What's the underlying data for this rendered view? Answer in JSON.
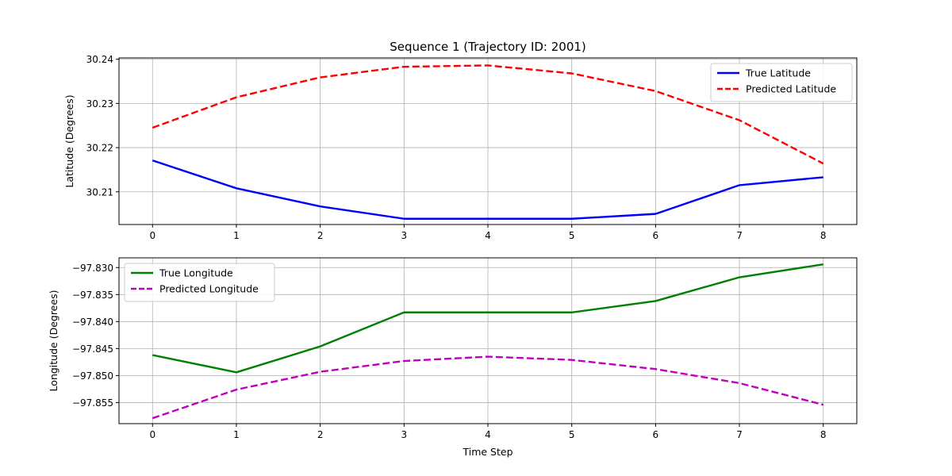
{
  "figure": {
    "title": "Sequence 1 (Trajectory ID: 2001)"
  },
  "chart_data": [
    {
      "type": "line",
      "title": "Sequence 1 (Trajectory ID: 2001)",
      "xlabel": "",
      "ylabel": "Latitude (Degrees)",
      "x": [
        0,
        1,
        2,
        3,
        4,
        5,
        6,
        7,
        8
      ],
      "xticks": [
        "0",
        "1",
        "2",
        "3",
        "4",
        "5",
        "6",
        "7",
        "8"
      ],
      "xlim": [
        -0.4,
        8.4
      ],
      "ylim": [
        30.2026,
        30.2403
      ],
      "yticks": [
        30.21,
        30.22,
        30.23,
        30.24
      ],
      "ytick_labels": [
        "30.21",
        "30.22",
        "30.23",
        "30.24"
      ],
      "grid": true,
      "legend_position": "upper right",
      "series": [
        {
          "name": "True Latitude",
          "color": "#0000ff",
          "style": "solid",
          "values": [
            30.2171,
            30.2108,
            30.2067,
            30.2039,
            30.2039,
            30.2039,
            30.205,
            30.2115,
            30.2133
          ]
        },
        {
          "name": "Predicted Latitude",
          "color": "#ff0000",
          "style": "dashed",
          "values": [
            30.2245,
            30.2314,
            30.2359,
            30.2383,
            30.2386,
            30.2368,
            30.2328,
            30.2262,
            30.2164
          ]
        }
      ]
    },
    {
      "type": "line",
      "title": "",
      "xlabel": "Time Step",
      "ylabel": "Longitude (Degrees)",
      "x": [
        0,
        1,
        2,
        3,
        4,
        5,
        6,
        7,
        8
      ],
      "xticks": [
        "0",
        "1",
        "2",
        "3",
        "4",
        "5",
        "6",
        "7",
        "8"
      ],
      "xlim": [
        -0.4,
        8.4
      ],
      "ylim": [
        -97.8589,
        -97.8282
      ],
      "yticks": [
        -97.855,
        -97.85,
        -97.845,
        -97.84,
        -97.835,
        -97.83
      ],
      "ytick_labels": [
        "−97.855",
        "−97.850",
        "−97.845",
        "−97.840",
        "−97.835",
        "−97.830"
      ],
      "grid": true,
      "legend_position": "upper left",
      "series": [
        {
          "name": "True Longitude",
          "color": "#008000",
          "style": "solid",
          "values": [
            -97.8462,
            -97.8494,
            -97.8446,
            -97.8383,
            -97.8383,
            -97.8383,
            -97.8362,
            -97.8318,
            -97.8294
          ]
        },
        {
          "name": "Predicted Longitude",
          "color": "#bf00bf",
          "style": "dashed",
          "values": [
            -97.8579,
            -97.8526,
            -97.8493,
            -97.8473,
            -97.8465,
            -97.8471,
            -97.8488,
            -97.8514,
            -97.8554
          ]
        }
      ]
    }
  ]
}
